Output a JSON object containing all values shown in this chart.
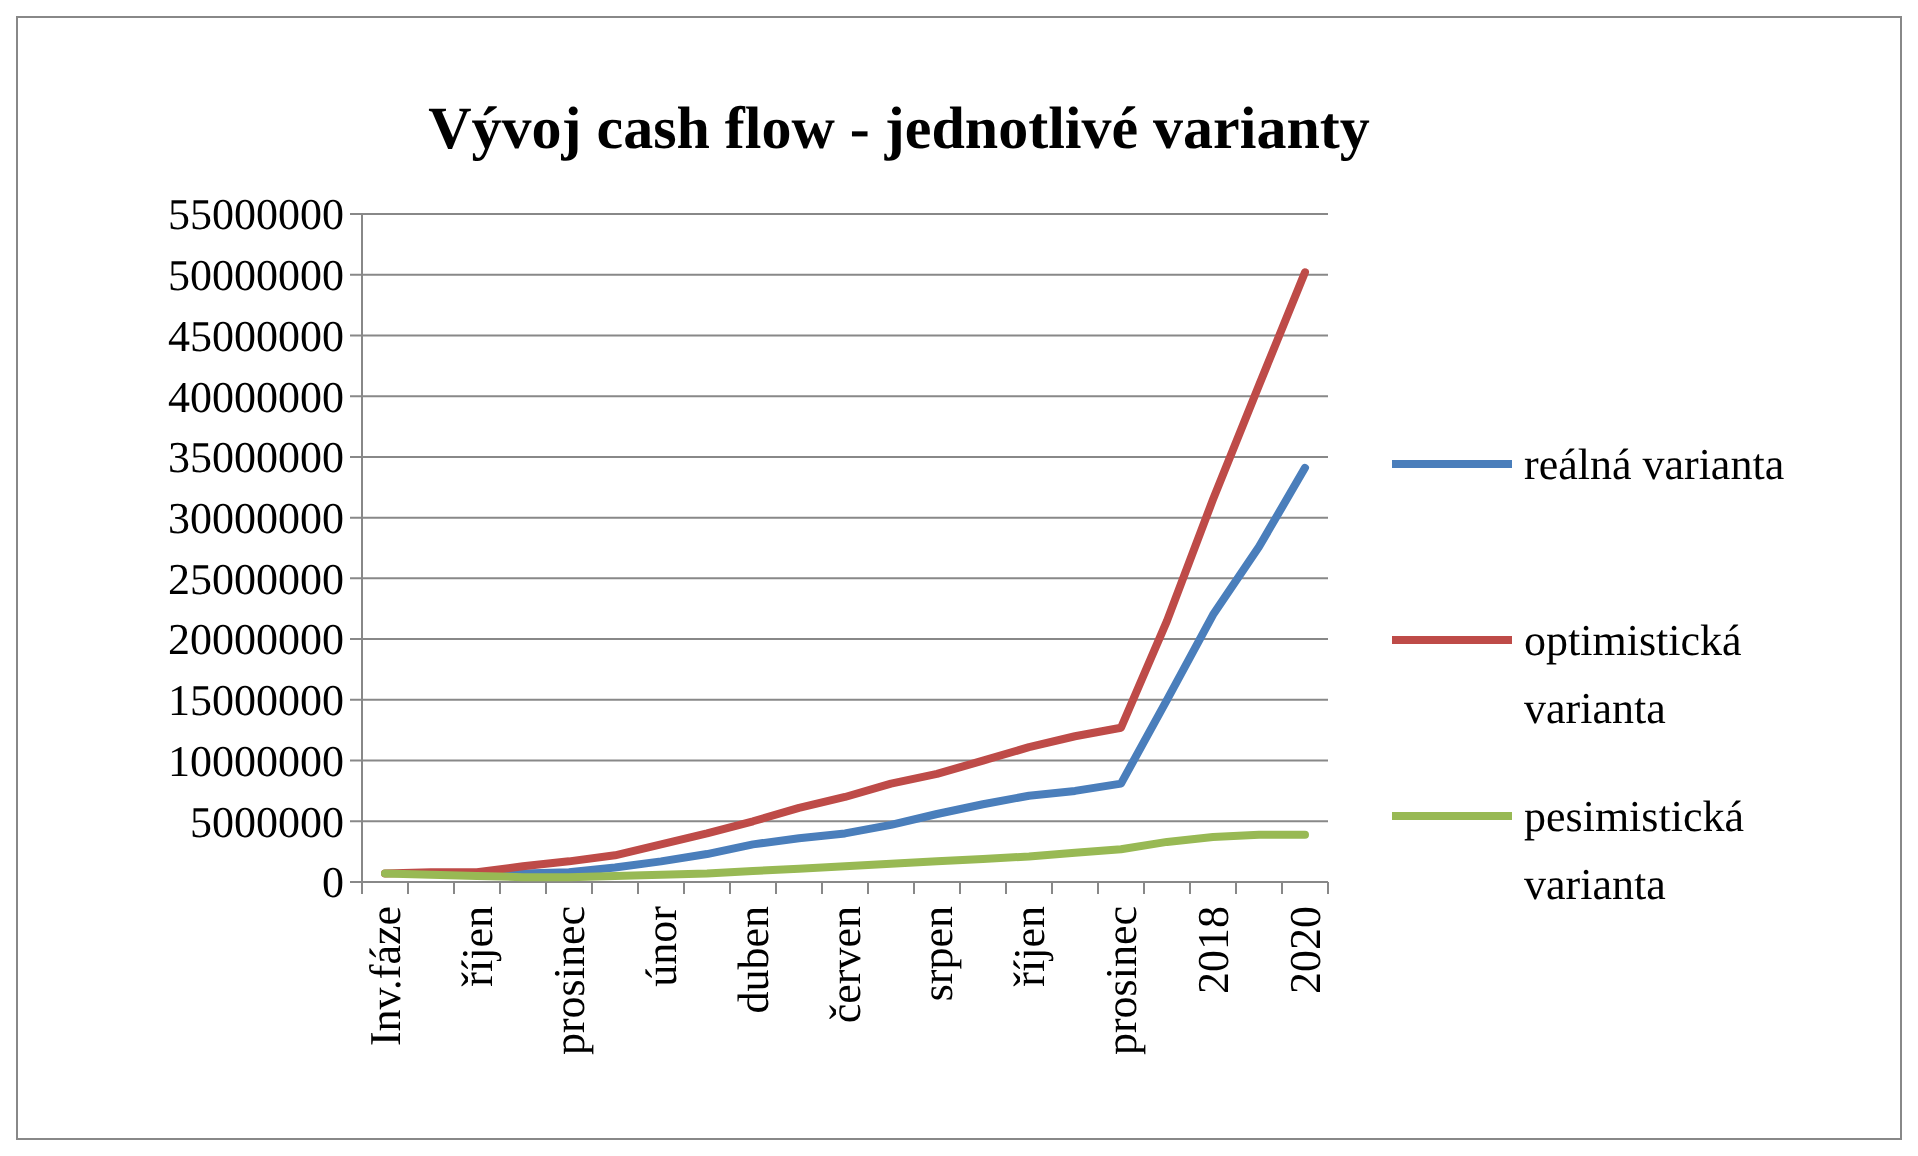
{
  "chart_data": {
    "type": "line",
    "title": "Vývoj cash flow - jednotlivé varianty",
    "categories": [
      "Inv.fáze",
      null,
      "říjen",
      null,
      "prosinec",
      null,
      "únor",
      null,
      "duben",
      null,
      "červen",
      null,
      "srpen",
      null,
      "říjen",
      null,
      "prosinec",
      null,
      "2018",
      null,
      "2020"
    ],
    "series": [
      {
        "name": "reálná varianta",
        "color": "#4a7ebb",
        "values": [
          null,
          null,
          700000.0,
          700000.0,
          800000.0,
          1200000.0,
          1700000.0,
          2300000.0,
          3100000.0,
          3600000.0,
          4000000.0,
          4700000.0,
          5600000.0,
          6400000.0,
          7100000.0,
          7500000.0,
          8100000.0,
          15000000.0,
          22000000.0,
          27600000.0,
          34100000.0
        ]
      },
      {
        "name": "optimistická varianta",
        "color": "#be4b48",
        "values": [
          700000.0,
          800000.0,
          800000.0,
          1300000.0,
          1700000.0,
          2200000.0,
          3100000.0,
          4000000.0,
          5000000.0,
          6100000.0,
          7000000.0,
          8100000.0,
          8900000.0,
          10000000.0,
          11100000.0,
          12000000.0,
          12700000.0,
          21500000.0,
          31500000.0,
          40900000.0,
          50200000.0
        ]
      },
      {
        "name": "pesimistická varianta",
        "color": "#98b954",
        "values": [
          700000.0,
          600000.0,
          500000.0,
          400000.0,
          400000.0,
          500000.0,
          600000.0,
          700000.0,
          900000.0,
          1100000.0,
          1300000.0,
          1500000.0,
          1700000.0,
          1900000.0,
          2100000.0,
          2400000.0,
          2700000.0,
          3300000.0,
          3700000.0,
          3900000.0,
          3900000.0
        ]
      }
    ],
    "ylim": [
      0,
      55000000
    ],
    "yticks": [
      0,
      5000000,
      10000000,
      15000000,
      20000000,
      25000000,
      30000000,
      35000000,
      40000000,
      45000000,
      50000000,
      55000000
    ],
    "grid": "y",
    "legend": "right",
    "marker": "none",
    "line_style": "solid"
  }
}
